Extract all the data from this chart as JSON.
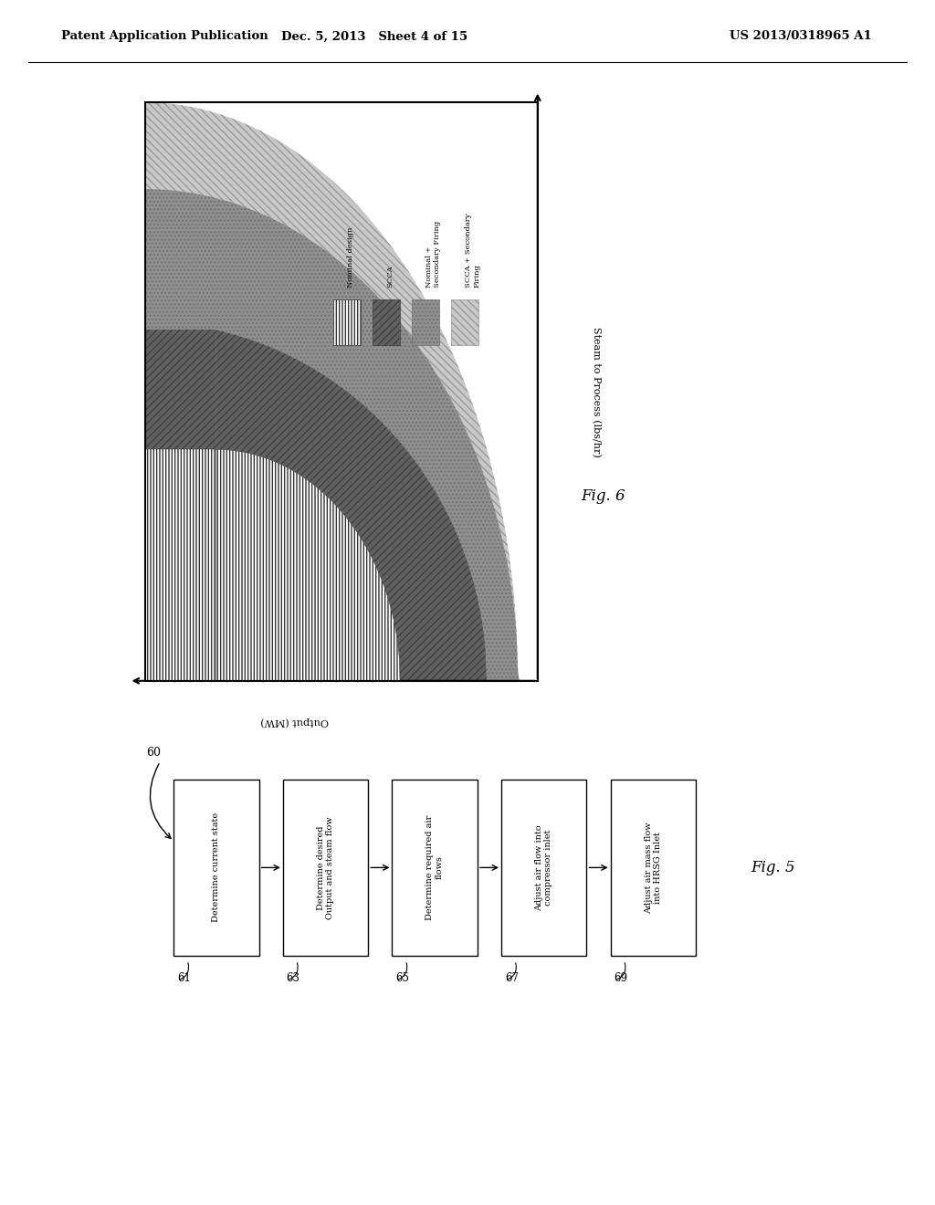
{
  "header_left": "Patent Application Publication",
  "header_mid": "Dec. 5, 2013   Sheet 4 of 15",
  "header_right": "US 2013/0318965 A1",
  "fig6_title": "Fig. 6",
  "fig5_title": "Fig. 5",
  "fig6_ylabel": "Steam to Process (lbs/hr)",
  "fig6_xlabel": "Output (MW)",
  "legend_labels": [
    "Nominal design",
    "SCCA",
    "Nominal +\nSecondary Firing",
    "SCCA + Secondary\nFiring"
  ],
  "fig5_label": "60",
  "fig5_boxes": [
    {
      "label": "Determine current state",
      "num": "61"
    },
    {
      "label": "Determine desired\nOutput and steam flow",
      "num": "63"
    },
    {
      "label": "Determine required air\nflows",
      "num": "65"
    },
    {
      "label": "Adjust air flow into\ncompressor inlet",
      "num": "67"
    },
    {
      "label": "Adjust air mass flow\ninto HRSG Inlet",
      "num": "69"
    }
  ]
}
